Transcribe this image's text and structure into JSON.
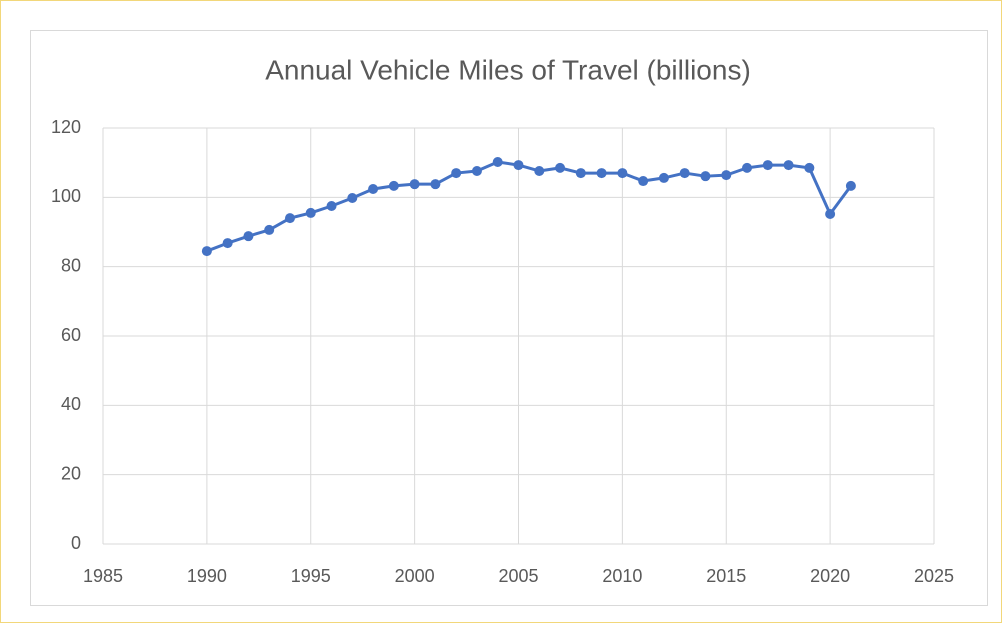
{
  "chart_data": {
    "type": "scatter",
    "title": "Annual Vehicle Miles of Travel (billions)",
    "x": [
      1990,
      1991,
      1992,
      1993,
      1994,
      1995,
      1996,
      1997,
      1998,
      1999,
      2000,
      2001,
      2002,
      2003,
      2004,
      2005,
      2006,
      2007,
      2008,
      2009,
      2010,
      2011,
      2012,
      2013,
      2014,
      2015,
      2016,
      2017,
      2018,
      2019,
      2020,
      2021
    ],
    "series": [
      {
        "color": "#4472c4",
        "values": [
          84.5,
          86.8,
          88.8,
          90.6,
          94.0,
          95.5,
          97.5,
          99.8,
          102.4,
          103.3,
          103.8,
          103.8,
          107.0,
          107.6,
          110.2,
          109.3,
          107.6,
          108.5,
          107.0,
          107.0,
          107.0,
          104.7,
          105.6,
          107.0,
          106.1,
          106.4,
          108.5,
          109.3,
          109.3,
          108.5,
          95.2,
          103.3
        ]
      }
    ],
    "line": true,
    "xlim": [
      1985,
      2025
    ],
    "xticks": [
      1985,
      1990,
      1995,
      2000,
      2005,
      2010,
      2015,
      2020,
      2025
    ],
    "ylim": [
      0,
      120
    ],
    "yticks": [
      0,
      20,
      40,
      60,
      80,
      100,
      120
    ],
    "grid": true
  }
}
